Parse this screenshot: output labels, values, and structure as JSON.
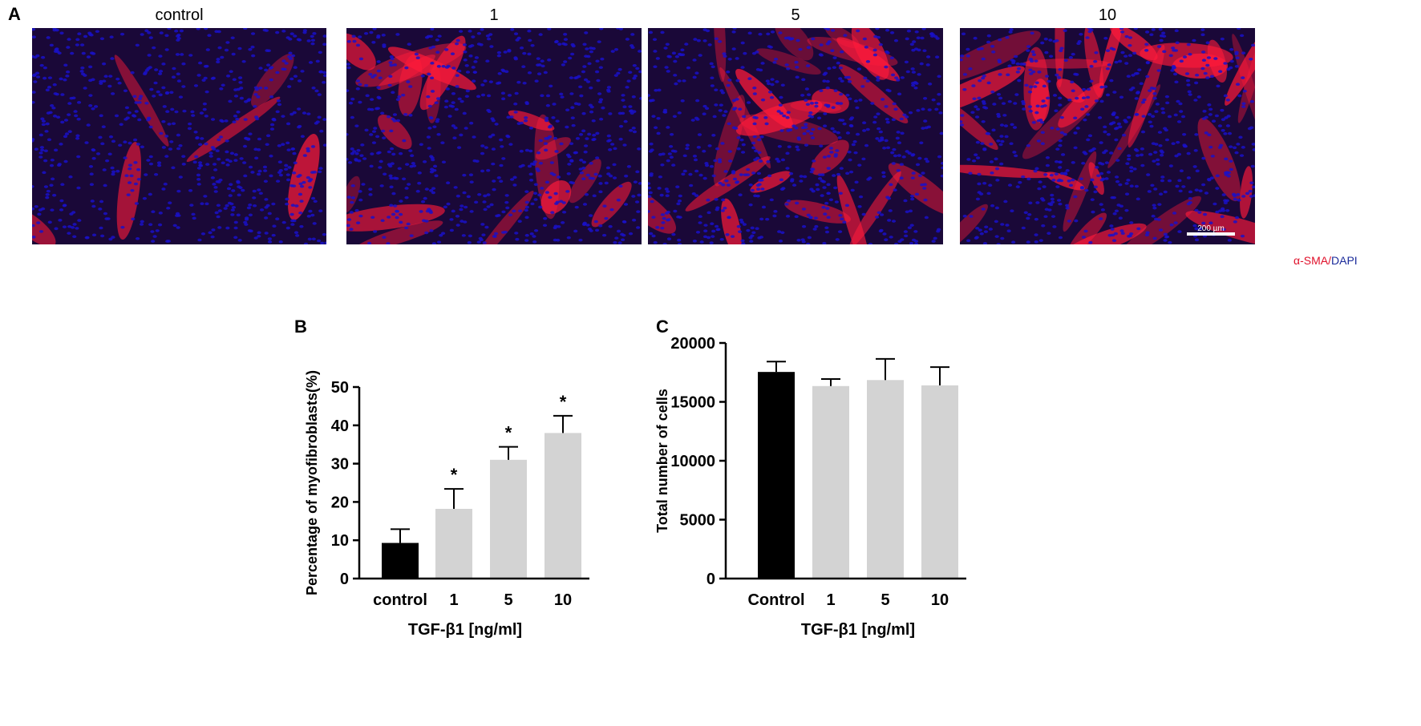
{
  "panel_a": {
    "label": "A",
    "images": [
      {
        "title": "control",
        "red_density": 0.15
      },
      {
        "title": "1",
        "red_density": 0.45
      },
      {
        "title": "5",
        "red_density": 0.6
      },
      {
        "title": "10",
        "red_density": 0.8
      }
    ],
    "scale_bar": "200 µm",
    "legend_red": "α-SMA/",
    "legend_blue": " DAPI",
    "colors": {
      "red": "#ff1a3a",
      "blue": "#1a10c8",
      "background": "#1a0838"
    }
  },
  "chart_data": [
    {
      "panel_label": "B",
      "type": "bar",
      "categories": [
        "control",
        "1",
        "5",
        "10"
      ],
      "values": [
        9.3,
        18.2,
        31.0,
        38.0
      ],
      "errors_upper": [
        12.9,
        23.4,
        34.4,
        42.5
      ],
      "significance": [
        "",
        "*",
        "*",
        "*"
      ],
      "bar_colors": [
        "#000000",
        "#d3d3d3",
        "#d3d3d3",
        "#d3d3d3"
      ],
      "xlabel": "TGF-β1 [ng/ml]",
      "ylabel": "Percentage of myofibroblasts(%)",
      "ylim": [
        0,
        50
      ],
      "yticks": [
        0,
        10,
        20,
        30,
        40,
        50
      ],
      "grid": false
    },
    {
      "panel_label": "C",
      "type": "bar",
      "categories": [
        "Control",
        "1",
        "5",
        "10"
      ],
      "values": [
        17540,
        16340,
        16850,
        16400
      ],
      "errors_upper": [
        18420,
        16940,
        18650,
        17950
      ],
      "significance": [
        "",
        "",
        "",
        ""
      ],
      "bar_colors": [
        "#000000",
        "#d3d3d3",
        "#d3d3d3",
        "#d3d3d3"
      ],
      "xlabel": "TGF-β1 [ng/ml]",
      "ylabel": "Total number of cells",
      "ylim": [
        0,
        20000
      ],
      "yticks": [
        0,
        5000,
        10000,
        15000,
        20000
      ],
      "grid": false
    }
  ]
}
